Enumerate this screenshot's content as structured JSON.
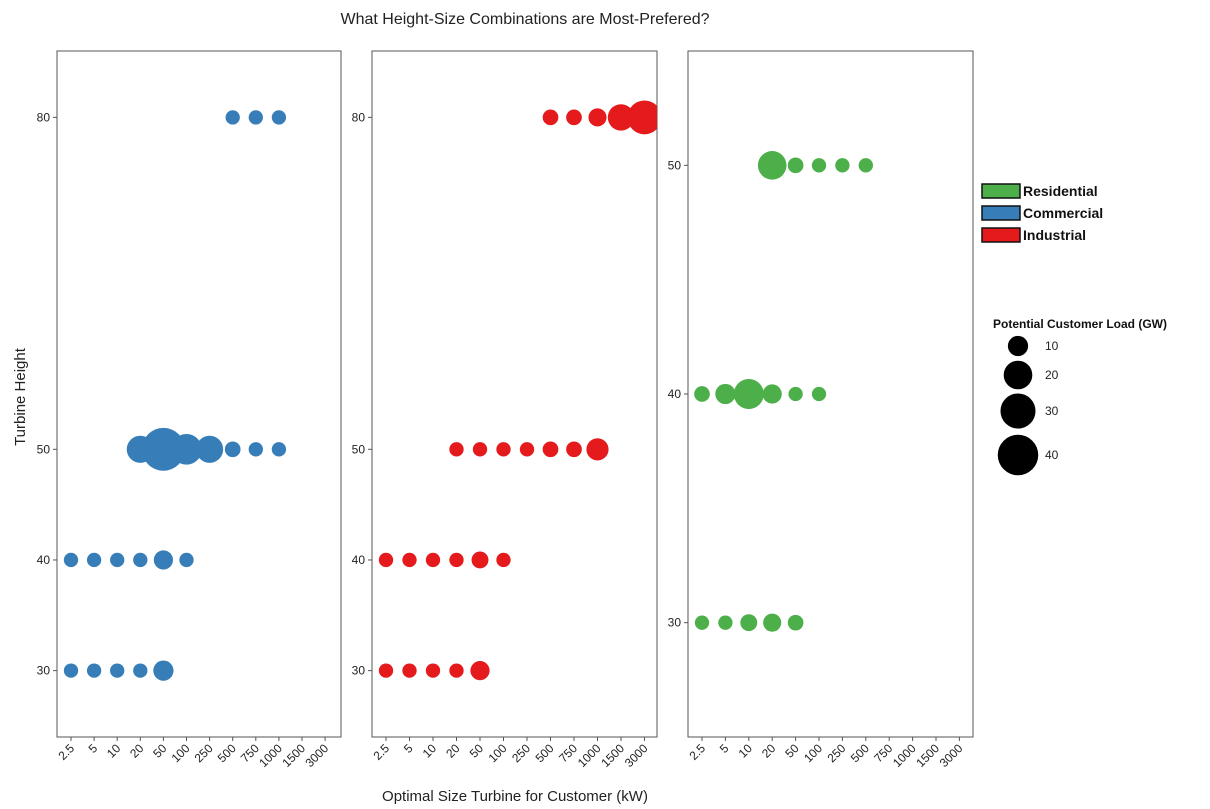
{
  "chart_data": {
    "type": "scatter",
    "title": "What Height-Size Combinations are Most-Prefered?",
    "xlabel": "Optimal Size Turbine for Customer (kW)",
    "ylabel": "Turbine Height",
    "x_categories": [
      "2.5",
      "5",
      "10",
      "20",
      "50",
      "100",
      "250",
      "500",
      "750",
      "1000",
      "1500",
      "3000"
    ],
    "legend": {
      "colors": [
        {
          "name": "Residential",
          "color": "#4daf4a"
        },
        {
          "name": "Commercial",
          "color": "#377eb8"
        },
        {
          "name": "Industrial",
          "color": "#e41a1c"
        }
      ],
      "size_title": "Potential Customer Load (GW)",
      "sizes": [
        10,
        20,
        30,
        40
      ]
    },
    "panels": [
      {
        "series": "Commercial",
        "color": "#377eb8",
        "ylim": [
          24,
          86
        ],
        "yticks": [
          30,
          40,
          50,
          80
        ],
        "y_levels": {
          "30": 30,
          "40": 40,
          "50": 50,
          "80": 80
        },
        "points": [
          {
            "x": "2.5",
            "y": 30,
            "load": 5
          },
          {
            "x": "5",
            "y": 30,
            "load": 5
          },
          {
            "x": "10",
            "y": 30,
            "load": 5
          },
          {
            "x": "20",
            "y": 30,
            "load": 5
          },
          {
            "x": "50",
            "y": 30,
            "load": 10
          },
          {
            "x": "2.5",
            "y": 40,
            "load": 5
          },
          {
            "x": "5",
            "y": 40,
            "load": 5
          },
          {
            "x": "10",
            "y": 40,
            "load": 5
          },
          {
            "x": "20",
            "y": 40,
            "load": 5
          },
          {
            "x": "50",
            "y": 40,
            "load": 9
          },
          {
            "x": "100",
            "y": 40,
            "load": 5
          },
          {
            "x": "20",
            "y": 50,
            "load": 18
          },
          {
            "x": "50",
            "y": 50,
            "load": 45
          },
          {
            "x": "100",
            "y": 50,
            "load": 23
          },
          {
            "x": "250",
            "y": 50,
            "load": 18
          },
          {
            "x": "500",
            "y": 50,
            "load": 6
          },
          {
            "x": "750",
            "y": 50,
            "load": 5
          },
          {
            "x": "1000",
            "y": 50,
            "load": 5
          },
          {
            "x": "500",
            "y": 80,
            "load": 5
          },
          {
            "x": "750",
            "y": 80,
            "load": 5
          },
          {
            "x": "1000",
            "y": 80,
            "load": 5
          }
        ]
      },
      {
        "series": "Industrial",
        "color": "#e41a1c",
        "ylim": [
          24,
          86
        ],
        "yticks": [
          30,
          40,
          50,
          80
        ],
        "y_levels": {
          "30": 30,
          "40": 40,
          "50": 50,
          "80": 80
        },
        "points": [
          {
            "x": "2.5",
            "y": 30,
            "load": 5
          },
          {
            "x": "5",
            "y": 30,
            "load": 5
          },
          {
            "x": "10",
            "y": 30,
            "load": 5
          },
          {
            "x": "20",
            "y": 30,
            "load": 5
          },
          {
            "x": "50",
            "y": 30,
            "load": 9
          },
          {
            "x": "2.5",
            "y": 40,
            "load": 5
          },
          {
            "x": "5",
            "y": 40,
            "load": 5
          },
          {
            "x": "10",
            "y": 40,
            "load": 5
          },
          {
            "x": "20",
            "y": 40,
            "load": 5
          },
          {
            "x": "50",
            "y": 40,
            "load": 7
          },
          {
            "x": "100",
            "y": 40,
            "load": 5
          },
          {
            "x": "20",
            "y": 50,
            "load": 5
          },
          {
            "x": "50",
            "y": 50,
            "load": 5
          },
          {
            "x": "100",
            "y": 50,
            "load": 5
          },
          {
            "x": "250",
            "y": 50,
            "load": 5
          },
          {
            "x": "500",
            "y": 50,
            "load": 6
          },
          {
            "x": "750",
            "y": 50,
            "load": 6
          },
          {
            "x": "1000",
            "y": 50,
            "load": 12
          },
          {
            "x": "500",
            "y": 80,
            "load": 6
          },
          {
            "x": "750",
            "y": 80,
            "load": 6
          },
          {
            "x": "1000",
            "y": 80,
            "load": 8
          },
          {
            "x": "1500",
            "y": 80,
            "load": 17
          },
          {
            "x": "3000",
            "y": 80,
            "load": 28
          }
        ]
      },
      {
        "series": "Residential",
        "color": "#4daf4a",
        "ylim": [
          25,
          55
        ],
        "yticks": [
          30,
          40,
          50
        ],
        "y_levels": {
          "30": 30,
          "40": 40,
          "50": 50
        },
        "points": [
          {
            "x": "2.5",
            "y": 30,
            "load": 5
          },
          {
            "x": "5",
            "y": 30,
            "load": 5
          },
          {
            "x": "10",
            "y": 30,
            "load": 7
          },
          {
            "x": "20",
            "y": 30,
            "load": 8
          },
          {
            "x": "50",
            "y": 30,
            "load": 6
          },
          {
            "x": "2.5",
            "y": 40,
            "load": 6
          },
          {
            "x": "5",
            "y": 40,
            "load": 10
          },
          {
            "x": "10",
            "y": 40,
            "load": 22
          },
          {
            "x": "20",
            "y": 40,
            "load": 9
          },
          {
            "x": "50",
            "y": 40,
            "load": 5
          },
          {
            "x": "100",
            "y": 40,
            "load": 5
          },
          {
            "x": "20",
            "y": 50,
            "load": 20
          },
          {
            "x": "50",
            "y": 50,
            "load": 6
          },
          {
            "x": "100",
            "y": 50,
            "load": 5
          },
          {
            "x": "250",
            "y": 50,
            "load": 5
          },
          {
            "x": "500",
            "y": 50,
            "load": 5
          }
        ]
      }
    ]
  }
}
